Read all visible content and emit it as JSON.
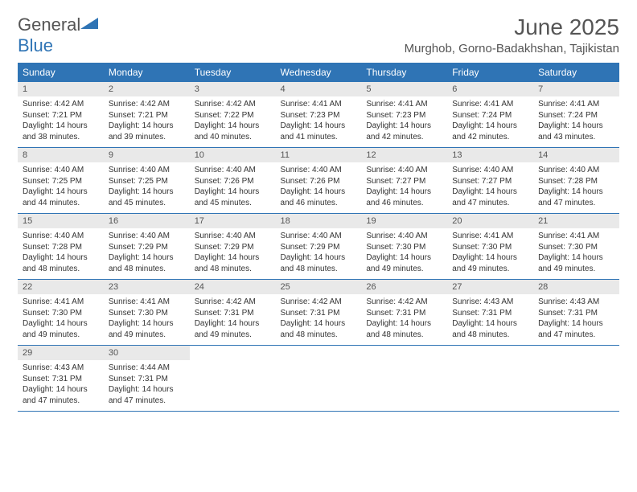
{
  "logo": {
    "part1": "General",
    "part2": "Blue"
  },
  "title": "June 2025",
  "location": "Murghob, Gorno-Badakhshan, Tajikistan",
  "colors": {
    "header_bg": "#2f74b5",
    "daynum_bg": "#e9e9e9",
    "text": "#555555"
  },
  "weekdays": [
    "Sunday",
    "Monday",
    "Tuesday",
    "Wednesday",
    "Thursday",
    "Friday",
    "Saturday"
  ],
  "weeks": [
    [
      {
        "n": "1",
        "sr": "4:42 AM",
        "ss": "7:21 PM",
        "dl": "14 hours and 38 minutes."
      },
      {
        "n": "2",
        "sr": "4:42 AM",
        "ss": "7:21 PM",
        "dl": "14 hours and 39 minutes."
      },
      {
        "n": "3",
        "sr": "4:42 AM",
        "ss": "7:22 PM",
        "dl": "14 hours and 40 minutes."
      },
      {
        "n": "4",
        "sr": "4:41 AM",
        "ss": "7:23 PM",
        "dl": "14 hours and 41 minutes."
      },
      {
        "n": "5",
        "sr": "4:41 AM",
        "ss": "7:23 PM",
        "dl": "14 hours and 42 minutes."
      },
      {
        "n": "6",
        "sr": "4:41 AM",
        "ss": "7:24 PM",
        "dl": "14 hours and 42 minutes."
      },
      {
        "n": "7",
        "sr": "4:41 AM",
        "ss": "7:24 PM",
        "dl": "14 hours and 43 minutes."
      }
    ],
    [
      {
        "n": "8",
        "sr": "4:40 AM",
        "ss": "7:25 PM",
        "dl": "14 hours and 44 minutes."
      },
      {
        "n": "9",
        "sr": "4:40 AM",
        "ss": "7:25 PM",
        "dl": "14 hours and 45 minutes."
      },
      {
        "n": "10",
        "sr": "4:40 AM",
        "ss": "7:26 PM",
        "dl": "14 hours and 45 minutes."
      },
      {
        "n": "11",
        "sr": "4:40 AM",
        "ss": "7:26 PM",
        "dl": "14 hours and 46 minutes."
      },
      {
        "n": "12",
        "sr": "4:40 AM",
        "ss": "7:27 PM",
        "dl": "14 hours and 46 minutes."
      },
      {
        "n": "13",
        "sr": "4:40 AM",
        "ss": "7:27 PM",
        "dl": "14 hours and 47 minutes."
      },
      {
        "n": "14",
        "sr": "4:40 AM",
        "ss": "7:28 PM",
        "dl": "14 hours and 47 minutes."
      }
    ],
    [
      {
        "n": "15",
        "sr": "4:40 AM",
        "ss": "7:28 PM",
        "dl": "14 hours and 48 minutes."
      },
      {
        "n": "16",
        "sr": "4:40 AM",
        "ss": "7:29 PM",
        "dl": "14 hours and 48 minutes."
      },
      {
        "n": "17",
        "sr": "4:40 AM",
        "ss": "7:29 PM",
        "dl": "14 hours and 48 minutes."
      },
      {
        "n": "18",
        "sr": "4:40 AM",
        "ss": "7:29 PM",
        "dl": "14 hours and 48 minutes."
      },
      {
        "n": "19",
        "sr": "4:40 AM",
        "ss": "7:30 PM",
        "dl": "14 hours and 49 minutes."
      },
      {
        "n": "20",
        "sr": "4:41 AM",
        "ss": "7:30 PM",
        "dl": "14 hours and 49 minutes."
      },
      {
        "n": "21",
        "sr": "4:41 AM",
        "ss": "7:30 PM",
        "dl": "14 hours and 49 minutes."
      }
    ],
    [
      {
        "n": "22",
        "sr": "4:41 AM",
        "ss": "7:30 PM",
        "dl": "14 hours and 49 minutes."
      },
      {
        "n": "23",
        "sr": "4:41 AM",
        "ss": "7:30 PM",
        "dl": "14 hours and 49 minutes."
      },
      {
        "n": "24",
        "sr": "4:42 AM",
        "ss": "7:31 PM",
        "dl": "14 hours and 49 minutes."
      },
      {
        "n": "25",
        "sr": "4:42 AM",
        "ss": "7:31 PM",
        "dl": "14 hours and 48 minutes."
      },
      {
        "n": "26",
        "sr": "4:42 AM",
        "ss": "7:31 PM",
        "dl": "14 hours and 48 minutes."
      },
      {
        "n": "27",
        "sr": "4:43 AM",
        "ss": "7:31 PM",
        "dl": "14 hours and 48 minutes."
      },
      {
        "n": "28",
        "sr": "4:43 AM",
        "ss": "7:31 PM",
        "dl": "14 hours and 47 minutes."
      }
    ],
    [
      {
        "n": "29",
        "sr": "4:43 AM",
        "ss": "7:31 PM",
        "dl": "14 hours and 47 minutes."
      },
      {
        "n": "30",
        "sr": "4:44 AM",
        "ss": "7:31 PM",
        "dl": "14 hours and 47 minutes."
      },
      null,
      null,
      null,
      null,
      null
    ]
  ],
  "labels": {
    "sunrise": "Sunrise:",
    "sunset": "Sunset:",
    "daylight": "Daylight:"
  }
}
